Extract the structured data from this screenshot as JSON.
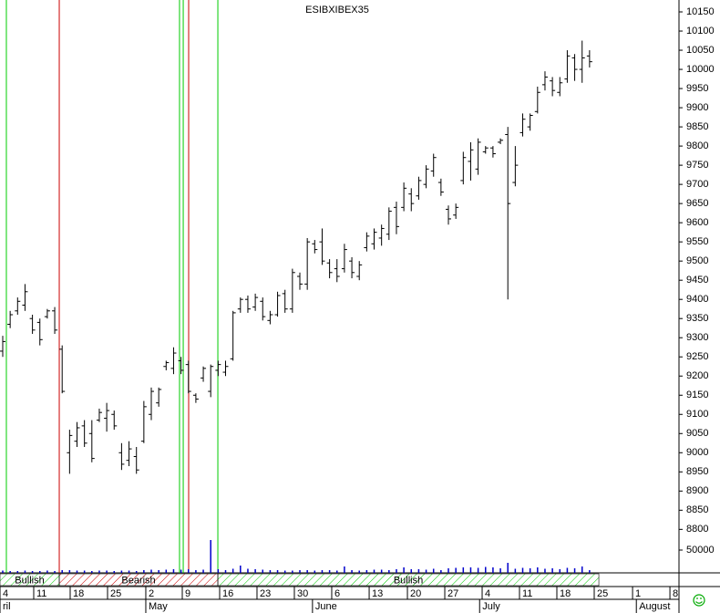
{
  "chart_data": {
    "type": "ohlc",
    "title": "ESIBXIBEX35",
    "high": [
      9305,
      9370,
      9405,
      9440,
      9360,
      9350,
      9375,
      9380,
      9280,
      9060,
      9080,
      9085,
      9085,
      9115,
      9130,
      9110,
      9025,
      9030,
      9015,
      9135,
      9170,
      9170,
      9240,
      9275,
      9250,
      9240,
      9155,
      9225,
      9230,
      9240,
      9240,
      9370,
      9405,
      9410,
      9415,
      9405,
      9370,
      9420,
      9425,
      9480,
      9470,
      9560,
      9555,
      9585,
      9505,
      9505,
      9545,
      9510,
      9500,
      9575,
      9585,
      9595,
      9640,
      9655,
      9705,
      9690,
      9720,
      9750,
      9780,
      9715,
      9645,
      9650,
      9785,
      9810,
      9820,
      9800,
      9800,
      9820,
      9850,
      9800,
      9885,
      9885,
      9955,
      9995,
      9980,
      9980,
      10050,
      10040,
      10075,
      10050
    ],
    "low": [
      9250,
      9325,
      9360,
      9370,
      9310,
      9280,
      9350,
      9310,
      9155,
      8945,
      9015,
      9015,
      8975,
      9080,
      9055,
      9060,
      8955,
      8965,
      8945,
      9025,
      9085,
      9120,
      9215,
      9205,
      9205,
      9155,
      9130,
      9185,
      9145,
      9200,
      9200,
      9240,
      9365,
      9365,
      9370,
      9345,
      9335,
      9355,
      9365,
      9365,
      9425,
      9425,
      9520,
      9490,
      9455,
      9445,
      9470,
      9455,
      9450,
      9525,
      9530,
      9540,
      9555,
      9570,
      9630,
      9630,
      9660,
      9690,
      9720,
      9670,
      9595,
      9610,
      9700,
      9710,
      9725,
      9780,
      9770,
      9805,
      9400,
      9695,
      9825,
      9840,
      9885,
      9945,
      9930,
      9930,
      9965,
      9970,
      9965,
      10005
    ],
    "open": [
      9265,
      9335,
      9370,
      9385,
      9350,
      9340,
      9355,
      9370,
      9270,
      9000,
      9030,
      9070,
      9050,
      9085,
      9090,
      9100,
      9000,
      8980,
      8990,
      9030,
      9100,
      9130,
      9225,
      9220,
      9240,
      9230,
      9150,
      9195,
      9160,
      9215,
      9210,
      9245,
      9375,
      9400,
      9380,
      9395,
      9345,
      9360,
      9415,
      9375,
      9460,
      9440,
      9545,
      9550,
      9495,
      9480,
      9480,
      9500,
      9460,
      9535,
      9545,
      9560,
      9570,
      9640,
      9640,
      9675,
      9670,
      9700,
      9735,
      9705,
      9635,
      9620,
      9710,
      9760,
      9740,
      9785,
      9795,
      9810,
      9830,
      9705,
      9835,
      9850,
      9890,
      9960,
      9970,
      9940,
      9975,
      10030,
      10000,
      10035
    ],
    "close": [
      9290,
      9360,
      9395,
      9420,
      9320,
      9295,
      9370,
      9320,
      9160,
      9045,
      9065,
      9025,
      8985,
      9105,
      9110,
      9070,
      8970,
      9010,
      8955,
      9120,
      9160,
      9165,
      9235,
      9260,
      9215,
      9160,
      9140,
      9220,
      9225,
      9230,
      9225,
      9365,
      9400,
      9375,
      9405,
      9355,
      9360,
      9410,
      9375,
      9470,
      9440,
      9550,
      9530,
      9500,
      9470,
      9460,
      9530,
      9470,
      9490,
      9565,
      9575,
      9585,
      9630,
      9590,
      9690,
      9650,
      9710,
      9740,
      9770,
      9680,
      9610,
      9640,
      9770,
      9790,
      9810,
      9795,
      9780,
      9815,
      9650,
      9750,
      9870,
      9880,
      9940,
      9980,
      9945,
      9965,
      10035,
      10000,
      10030,
      10020
    ],
    "volume": [
      5000,
      4000,
      4000,
      5000,
      4000,
      4000,
      5000,
      4000,
      6000,
      6000,
      5000,
      5000,
      4000,
      5000,
      5000,
      4000,
      5000,
      5000,
      4000,
      6000,
      7000,
      6000,
      7000,
      8000,
      7000,
      8000,
      6000,
      7000,
      72000,
      8000,
      6000,
      9000,
      16000,
      9000,
      8000,
      7000,
      6000,
      6000,
      5000,
      5000,
      6000,
      6000,
      5000,
      6000,
      6000,
      5000,
      14000,
      6000,
      5000,
      6000,
      7000,
      7000,
      6000,
      8000,
      12000,
      8000,
      8000,
      7000,
      9000,
      6000,
      10000,
      11000,
      12000,
      12000,
      11000,
      13000,
      12000,
      10000,
      22000,
      9000,
      11000,
      10000,
      12000,
      9000,
      10000,
      8000,
      11000,
      10000,
      14000,
      6000
    ],
    "volume_color": "#0000cc",
    "color": "#000000",
    "xlim": [
      -0.368,
      91.04
    ],
    "ylim": [
      8777,
      10181
    ],
    "yticks": [
      8800,
      8850,
      8900,
      8950,
      9000,
      9050,
      9100,
      9150,
      9200,
      9250,
      9300,
      9350,
      9400,
      9450,
      9500,
      9550,
      9600,
      9650,
      9700,
      9750,
      9800,
      9850,
      9900,
      9950,
      10000,
      10050,
      10100,
      10150
    ],
    "volume_ylim": [
      0,
      76000
    ],
    "volume_yticks": [
      50000
    ],
    "xticks": [
      {
        "value": -0.368,
        "label": "4"
      },
      {
        "value": 4.17,
        "label": "11"
      },
      {
        "value": 9.08,
        "label": "18"
      },
      {
        "value": 14.11,
        "label": "25"
      },
      {
        "value": 19.26,
        "label": "2"
      },
      {
        "value": 24.17,
        "label": "9"
      },
      {
        "value": 29.2,
        "label": "16"
      },
      {
        "value": 34.23,
        "label": "23"
      },
      {
        "value": 39.26,
        "label": "30"
      },
      {
        "value": 44.29,
        "label": "6"
      },
      {
        "value": 49.33,
        "label": "13"
      },
      {
        "value": 54.48,
        "label": "20"
      },
      {
        "value": 59.51,
        "label": "27"
      },
      {
        "value": 64.54,
        "label": "4"
      },
      {
        "value": 69.57,
        "label": "11"
      },
      {
        "value": 74.6,
        "label": "18"
      },
      {
        "value": 79.63,
        "label": "25"
      },
      {
        "value": 84.79,
        "label": "1"
      },
      {
        "value": 89.82,
        "label": "8"
      }
    ],
    "month_ticks": [
      {
        "value": -0.368,
        "label": "ril"
      },
      {
        "value": 19.26,
        "label": "May"
      },
      {
        "value": 41.7,
        "label": "June"
      },
      {
        "value": 64.2,
        "label": "July"
      },
      {
        "value": 85.3,
        "label": "August"
      }
    ],
    "signals": [
      {
        "x": 0.49,
        "color": "#00cc00"
      },
      {
        "x": 7.61,
        "color": "#cc0000"
      },
      {
        "x": 23.8,
        "color": "#00cc00"
      },
      {
        "x": 24.3,
        "color": "#00cc00"
      },
      {
        "x": 25.03,
        "color": "#cc0000"
      },
      {
        "x": 28.96,
        "color": "#00cc00"
      }
    ],
    "bands": [
      {
        "start": -0.368,
        "end": 7.61,
        "label": "Bullish",
        "color": "#00cc00"
      },
      {
        "start": 7.61,
        "end": 28.96,
        "label": "Bearish",
        "color": "#cc0000"
      },
      {
        "start": 28.96,
        "end": 80.25,
        "label": "Bullish",
        "color": "#00cc00"
      }
    ]
  }
}
